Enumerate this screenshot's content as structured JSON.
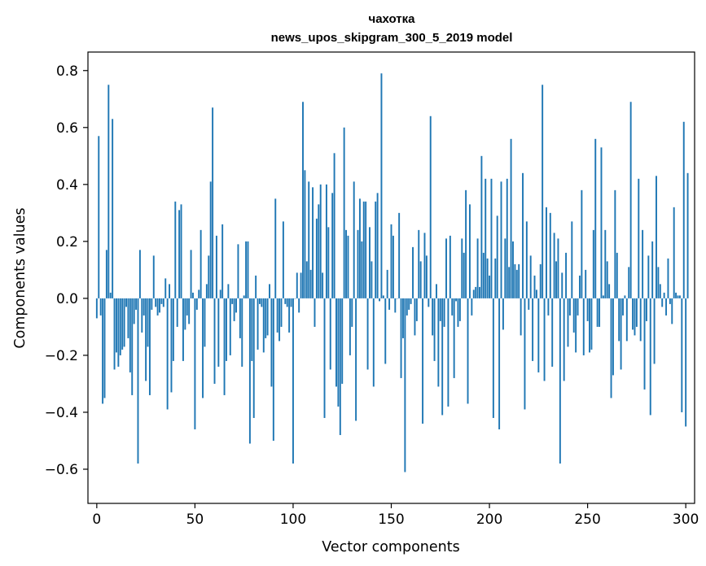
{
  "chart_data": {
    "type": "bar",
    "title": "чахотка",
    "subtitle": "news_upos_skipgram_300_5_2019 model",
    "xlabel": "Vector components",
    "ylabel": "Components values",
    "xlim": [
      -4.5,
      304.5
    ],
    "ylim": [
      -0.72,
      0.865
    ],
    "x_ticks": [
      0,
      50,
      100,
      150,
      200,
      250,
      300
    ],
    "x_tick_labels": [
      "0",
      "50",
      "100",
      "150",
      "200",
      "250",
      "300"
    ],
    "y_ticks": [
      -0.6,
      -0.4,
      -0.2,
      0.0,
      0.2,
      0.4,
      0.6,
      0.8
    ],
    "y_tick_labels": [
      "−0.6",
      "−0.4",
      "−0.2",
      "0.0",
      "0.2",
      "0.4",
      "0.6",
      "0.8"
    ],
    "bar_color": "#1f77b4",
    "grid": false,
    "values": [
      -0.07,
      0.57,
      -0.06,
      -0.37,
      -0.35,
      0.17,
      0.75,
      0.02,
      0.63,
      -0.25,
      -0.19,
      -0.24,
      -0.2,
      -0.18,
      -0.17,
      -0.03,
      -0.14,
      -0.26,
      -0.34,
      -0.09,
      -0.04,
      -0.58,
      0.17,
      -0.12,
      -0.06,
      -0.29,
      -0.17,
      -0.34,
      -0.04,
      0.15,
      -0.03,
      -0.06,
      -0.05,
      -0.02,
      -0.03,
      0.07,
      -0.39,
      0.05,
      -0.33,
      -0.22,
      0.34,
      -0.1,
      0.31,
      0.33,
      -0.22,
      -0.11,
      -0.06,
      -0.09,
      0.17,
      0.02,
      -0.46,
      -0.04,
      0.03,
      0.24,
      -0.35,
      -0.17,
      0.05,
      0.15,
      0.41,
      0.67,
      -0.3,
      0.22,
      -0.24,
      0.03,
      0.26,
      -0.34,
      -0.22,
      0.05,
      -0.2,
      -0.02,
      -0.08,
      -0.05,
      0.19,
      -0.14,
      -0.24,
      0.01,
      0.2,
      0.2,
      -0.51,
      -0.22,
      -0.42,
      0.08,
      -0.18,
      -0.02,
      -0.03,
      -0.19,
      -0.14,
      -0.13,
      0.05,
      -0.31,
      -0.5,
      0.35,
      -0.12,
      -0.15,
      -0.1,
      0.27,
      -0.02,
      -0.03,
      -0.12,
      -0.03,
      -0.58,
      0.0,
      0.09,
      -0.05,
      0.09,
      0.69,
      0.45,
      0.13,
      0.41,
      0.1,
      0.39,
      -0.1,
      0.28,
      0.33,
      0.4,
      0.09,
      -0.42,
      0.4,
      0.25,
      -0.25,
      0.37,
      0.51,
      -0.31,
      -0.38,
      -0.48,
      -0.3,
      0.6,
      0.24,
      0.22,
      -0.2,
      -0.1,
      0.41,
      -0.43,
      0.24,
      0.35,
      0.2,
      0.34,
      0.34,
      -0.25,
      0.25,
      0.13,
      -0.31,
      0.34,
      0.37,
      -0.01,
      0.79,
      0.01,
      -0.23,
      0.1,
      -0.04,
      0.26,
      0.22,
      -0.05,
      0.0,
      0.3,
      -0.28,
      -0.14,
      -0.61,
      -0.06,
      -0.04,
      -0.02,
      0.18,
      -0.13,
      -0.08,
      0.24,
      0.13,
      -0.44,
      0.23,
      0.15,
      -0.03,
      0.64,
      -0.13,
      -0.22,
      0.05,
      -0.31,
      -0.08,
      -0.41,
      -0.1,
      0.21,
      -0.38,
      0.22,
      -0.06,
      -0.28,
      -0.01,
      -0.1,
      -0.08,
      0.21,
      0.16,
      0.38,
      -0.37,
      0.33,
      -0.06,
      0.03,
      0.04,
      0.21,
      0.04,
      0.5,
      0.16,
      0.42,
      0.14,
      0.08,
      0.42,
      -0.42,
      0.14,
      0.29,
      -0.46,
      0.41,
      -0.11,
      0.21,
      0.42,
      0.11,
      0.56,
      0.2,
      0.12,
      0.1,
      0.12,
      -0.13,
      0.44,
      -0.39,
      0.27,
      -0.04,
      0.15,
      -0.22,
      0.08,
      0.03,
      -0.26,
      0.12,
      0.75,
      -0.29,
      0.32,
      -0.06,
      0.3,
      -0.24,
      0.23,
      0.13,
      0.21,
      -0.58,
      0.09,
      -0.29,
      0.16,
      -0.17,
      -0.06,
      0.27,
      -0.12,
      -0.19,
      -0.06,
      0.08,
      0.38,
      -0.2,
      0.1,
      -0.08,
      -0.19,
      -0.18,
      0.24,
      0.56,
      -0.1,
      -0.1,
      0.53,
      0.01,
      0.24,
      0.13,
      0.05,
      -0.35,
      -0.27,
      0.38,
      0.16,
      -0.15,
      -0.25,
      -0.06,
      0.01,
      -0.15,
      0.11,
      0.69,
      -0.11,
      -0.13,
      -0.1,
      0.42,
      -0.15,
      0.24,
      -0.32,
      -0.08,
      0.15,
      -0.41,
      0.2,
      -0.23,
      0.43,
      0.11,
      0.05,
      -0.03,
      0.02,
      -0.06,
      0.14,
      -0.02,
      -0.09,
      0.32,
      0.02,
      0.01,
      0.01,
      -0.4,
      0.62,
      -0.45,
      0.44
    ]
  }
}
